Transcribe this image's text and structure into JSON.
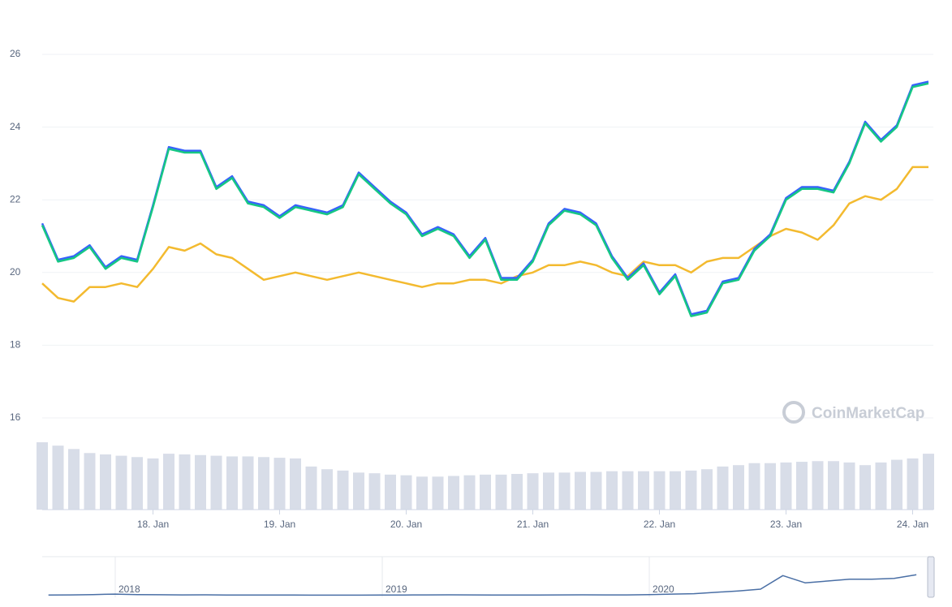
{
  "chart_data": [
    {
      "type": "line",
      "watermark": "CoinMarketCap",
      "categories": [
        null,
        null,
        null,
        null,
        null,
        null,
        null,
        "18. Jan",
        null,
        null,
        null,
        null,
        null,
        null,
        null,
        "19. Jan",
        null,
        null,
        null,
        null,
        null,
        null,
        null,
        "20. Jan",
        null,
        null,
        null,
        null,
        null,
        null,
        null,
        "21. Jan",
        null,
        null,
        null,
        null,
        null,
        null,
        null,
        "22. Jan",
        null,
        null,
        null,
        null,
        null,
        null,
        null,
        "23. Jan",
        null,
        null,
        null,
        null,
        null,
        null,
        null,
        "24. Jan",
        null
      ],
      "ylim": [
        16,
        26
      ],
      "yticks": [
        16,
        18,
        20,
        22,
        24,
        26
      ],
      "grid": true,
      "series": [
        {
          "color": "#f3ba2f",
          "values": [
            19.7,
            19.3,
            19.2,
            19.6,
            19.6,
            19.7,
            19.6,
            20.1,
            20.7,
            20.6,
            20.8,
            20.5,
            20.4,
            20.1,
            19.8,
            19.9,
            20.0,
            19.9,
            19.8,
            19.9,
            20.0,
            19.9,
            19.8,
            19.7,
            19.6,
            19.7,
            19.7,
            19.8,
            19.8,
            19.7,
            19.9,
            20.0,
            20.2,
            20.2,
            20.3,
            20.2,
            20.0,
            19.9,
            20.3,
            20.2,
            20.2,
            20.0,
            20.3,
            20.4,
            20.4,
            20.7,
            21.0,
            21.2,
            21.1,
            20.9,
            21.3,
            21.9,
            22.1,
            22.0,
            22.3,
            22.9,
            22.9
          ]
        },
        {
          "color": "#3861fb",
          "values": [
            21.35,
            20.35,
            20.45,
            20.75,
            20.15,
            20.45,
            20.35,
            21.85,
            23.45,
            23.35,
            23.35,
            22.35,
            22.65,
            21.95,
            21.85,
            21.55,
            21.85,
            21.75,
            21.65,
            21.85,
            22.75,
            22.35,
            21.95,
            21.65,
            21.05,
            21.25,
            21.05,
            20.45,
            20.95,
            19.85,
            19.85,
            20.35,
            21.35,
            21.75,
            21.65,
            21.35,
            20.45,
            19.85,
            20.25,
            19.45,
            19.95,
            18.85,
            18.95,
            19.75,
            19.85,
            20.65,
            21.05,
            22.05,
            22.35,
            22.35,
            22.25,
            23.05,
            24.15,
            23.65,
            24.05,
            25.15,
            25.25
          ]
        },
        {
          "color": "#16c784",
          "values": [
            21.3,
            20.3,
            20.4,
            20.7,
            20.1,
            20.4,
            20.3,
            21.8,
            23.4,
            23.3,
            23.3,
            22.3,
            22.6,
            21.9,
            21.8,
            21.5,
            21.8,
            21.7,
            21.6,
            21.8,
            22.7,
            22.3,
            21.9,
            21.6,
            21.0,
            21.2,
            21.0,
            20.4,
            20.9,
            19.8,
            19.8,
            20.3,
            21.3,
            21.7,
            21.6,
            21.3,
            20.4,
            19.8,
            20.2,
            19.4,
            19.9,
            18.8,
            18.9,
            19.7,
            19.8,
            20.6,
            21.0,
            22.0,
            22.3,
            22.3,
            22.2,
            23.0,
            24.1,
            23.6,
            24.0,
            25.1,
            25.2
          ]
        }
      ]
    },
    {
      "type": "bar",
      "color": "#d8dde8",
      "ylim": [
        0,
        100
      ],
      "values": [
        100,
        95,
        90,
        84,
        82,
        80,
        78,
        76,
        83,
        82,
        81,
        80,
        79,
        79,
        78,
        77,
        76,
        64,
        60,
        58,
        55,
        54,
        52,
        51,
        49,
        49,
        50,
        51,
        52,
        52,
        53,
        54,
        55,
        55,
        56,
        56,
        57,
        57,
        57,
        57,
        57,
        58,
        60,
        64,
        66,
        69,
        69,
        70,
        71,
        72,
        72,
        70,
        66,
        70,
        74,
        76,
        83
      ]
    },
    {
      "type": "line",
      "color": "#4a6fa5",
      "ylim": [
        0,
        45
      ],
      "categories": [
        null,
        null,
        null,
        "2018",
        null,
        null,
        null,
        null,
        null,
        null,
        null,
        null,
        null,
        null,
        null,
        "2019",
        null,
        null,
        null,
        null,
        null,
        null,
        null,
        null,
        null,
        null,
        null,
        "2020",
        null,
        null,
        null,
        null,
        null,
        null,
        null,
        null,
        null,
        null,
        null,
        null
      ],
      "values": [
        2.5,
        2.6,
        3.0,
        3.5,
        3.0,
        2.8,
        2.6,
        2.7,
        2.5,
        2.4,
        2.4,
        2.4,
        2.3,
        2.3,
        2.3,
        2.4,
        2.5,
        2.6,
        2.7,
        2.6,
        2.5,
        2.5,
        2.5,
        2.6,
        2.7,
        2.6,
        2.6,
        3.0,
        3.5,
        4.0,
        5.5,
        7.0,
        9.0,
        24.0,
        16.0,
        18.0,
        20.0,
        20.0,
        21.0,
        25.0
      ]
    }
  ]
}
